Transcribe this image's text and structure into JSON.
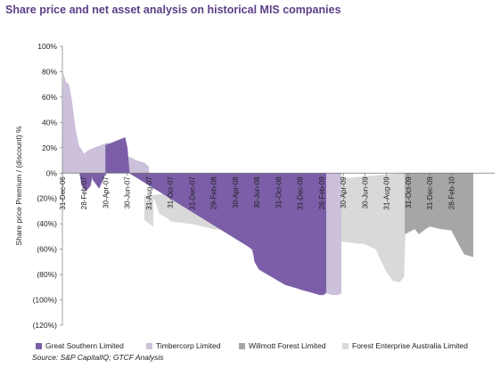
{
  "title": "Share price and net asset analysis on historical MIS companies",
  "source": "Source: S&P CapitalIQ; GTCF Analysis",
  "chart_data": {
    "type": "area",
    "title": "Share price and net asset analysis on historical MIS companies",
    "xlabel": "",
    "ylabel": "Share price Premium / (discount) %",
    "ylim": [
      -120,
      100
    ],
    "yticks": [
      100,
      80,
      60,
      40,
      20,
      0,
      -20,
      -40,
      -60,
      -80,
      -100,
      -120
    ],
    "ytick_labels": [
      "100%",
      "80%",
      "60%",
      "40%",
      "20%",
      "0%",
      "(20%)",
      "(40%)",
      "(60%)",
      "(80%)",
      "(100%)",
      "(120%)"
    ],
    "x_categories": [
      "31-Dec-06",
      "28-Feb-07",
      "30-Apr-07",
      "30-Jun-07",
      "31-Aug-07",
      "31-Oct-07",
      "31-Dec-07",
      "29-Feb-08",
      "30-Apr-08",
      "30-Jun-08",
      "31-Oct-08",
      "31-Dec-08",
      "28-Feb-09",
      "30-Apr-09",
      "30-Jun-09",
      "31-Aug-09",
      "31-Oct-09",
      "31-Dec-09",
      "28-Feb-10"
    ],
    "x_range": [
      0,
      40
    ],
    "x_tick_positions": [
      0,
      2,
      4,
      6,
      8,
      10,
      12,
      14,
      16,
      18,
      20,
      22,
      24,
      26,
      28,
      30,
      32,
      34,
      36
    ],
    "legend_position": "bottom",
    "grid": false,
    "series": [
      {
        "name": "Forest Enterprise Australia Limited",
        "color": "#d9d9d9",
        "x": [
          7.6,
          7.6,
          8.4,
          8.4,
          9.0,
          9.8,
          10.0,
          12.0,
          14.0,
          16.0,
          18.0,
          20.0,
          22.0,
          24.0,
          26.0,
          28.0,
          29.0,
          30.0,
          30.6,
          31.2,
          31.6,
          31.7,
          31.7
        ],
        "values": [
          -18,
          -37,
          -42,
          -18,
          -32,
          -36,
          -38,
          -40,
          -44,
          -46,
          -48,
          -50,
          -52,
          -52,
          -54,
          -56,
          -60,
          -78,
          -85,
          -86,
          -82,
          -50,
          0
        ]
      },
      {
        "name": "Willmott Forest Limited",
        "color": "#a6a6a6",
        "x": [
          31.7,
          31.7,
          32.6,
          33.0,
          33.6,
          34.0,
          35.0,
          36.0,
          36.8,
          37.2,
          38.0,
          38.0
        ],
        "values": [
          0,
          -48,
          -44,
          -48,
          -44,
          -42,
          -44,
          -45,
          -58,
          -64,
          -66,
          0
        ]
      },
      {
        "name": "Timbercorp Limited",
        "color": "#ccc0da",
        "x": [
          0.0,
          0.1,
          0.3,
          0.6,
          0.9,
          1.2,
          1.5,
          2.0,
          2.4,
          3.0,
          3.6,
          4.2,
          4.8,
          5.6,
          6.0,
          6.4,
          6.8,
          7.2,
          7.6,
          8.0,
          8.0,
          10.4,
          11.6,
          12.0,
          12.5,
          13.0,
          13.5,
          14.0,
          14.8,
          15.6,
          16.0,
          16.4,
          17.0,
          17.6,
          18.0,
          18.6,
          19.0,
          19.6,
          20.0,
          20.6,
          21.0,
          21.6,
          22.0,
          22.6,
          23.0,
          23.6,
          24.0,
          24.6,
          25.0,
          25.4,
          25.8,
          25.8
        ],
        "values": [
          0,
          78,
          72,
          70,
          55,
          35,
          22,
          15,
          18,
          20,
          22,
          24,
          16,
          14,
          13,
          12,
          10,
          9,
          8,
          5,
          0,
          0,
          -2,
          -15,
          -20,
          -28,
          -35,
          -32,
          -40,
          -38,
          -42,
          -48,
          -55,
          -62,
          -68,
          -72,
          -75,
          -80,
          -84,
          -86,
          -88,
          -90,
          -92,
          -93,
          -94,
          -94,
          -95,
          -95,
          -96,
          -96,
          -95,
          0
        ]
      },
      {
        "name": "Great Southern Limited",
        "color": "#7b5ea7",
        "x": [
          1.6,
          1.8,
          2.2,
          2.6,
          2.8,
          2.8,
          3.4,
          3.6,
          4.0,
          4.0,
          5.8,
          6.0,
          6.2,
          6.2,
          17.6,
          17.8,
          18.2,
          18.6,
          19.0,
          19.4,
          19.8,
          20.2,
          20.6,
          21.0,
          21.4,
          21.8,
          22.2,
          22.6,
          23.0,
          23.4,
          23.8,
          24.2,
          24.4,
          24.4
        ],
        "values": [
          0,
          -10,
          -14,
          -10,
          0,
          -5,
          -12,
          -8,
          0,
          22,
          28,
          20,
          0,
          0,
          -60,
          -70,
          -76,
          -78,
          -80,
          -82,
          -84,
          -86,
          -88,
          -89,
          -90,
          -91,
          -92,
          -93,
          -94,
          -95,
          -96,
          -96,
          -94,
          0
        ]
      }
    ]
  },
  "legend": [
    {
      "name": "Great Southern Limited",
      "color": "#7b5ea7"
    },
    {
      "name": "Timbercorp Limited",
      "color": "#ccc0da"
    },
    {
      "name": "Willmott Forest Limited",
      "color": "#a6a6a6"
    },
    {
      "name": "Forest Enterprise Australia Limited",
      "color": "#d9d9d9"
    }
  ]
}
